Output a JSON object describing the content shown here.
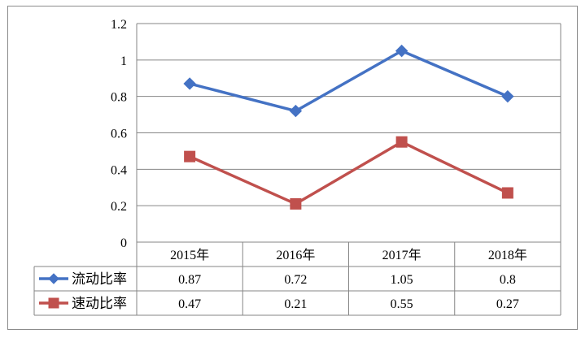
{
  "chart_data": {
    "type": "line",
    "title": "",
    "xlabel": "",
    "ylabel": "",
    "categories": [
      "2015年",
      "2016年",
      "2017年",
      "2018年"
    ],
    "ylim": [
      0,
      1.2
    ],
    "yticks": [
      "0",
      "0.2",
      "0.4",
      "0.6",
      "0.8",
      "1",
      "1.2"
    ],
    "grid": true,
    "legend": "data-table",
    "series": [
      {
        "name": "流动比率",
        "values": [
          0.87,
          0.72,
          1.05,
          0.8
        ],
        "labels": [
          "0.87",
          "0.72",
          "1.05",
          "0.8"
        ],
        "color": "#4472C4",
        "marker": "diamond"
      },
      {
        "name": "速动比率",
        "values": [
          0.47,
          0.21,
          0.55,
          0.27
        ],
        "labels": [
          "0.47",
          "0.21",
          "0.55",
          "0.27"
        ],
        "color": "#C0504D",
        "marker": "square"
      }
    ]
  }
}
